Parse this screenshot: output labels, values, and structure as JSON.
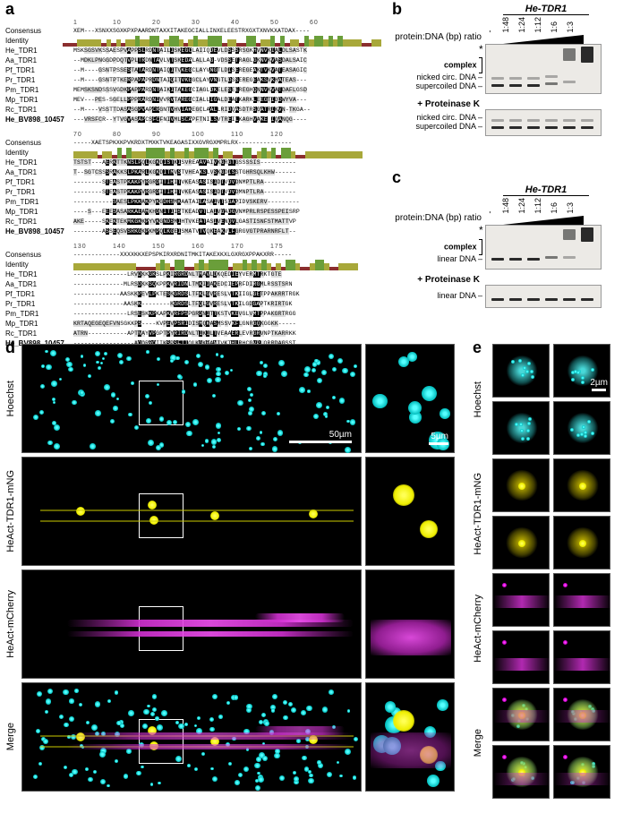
{
  "panel_labels": {
    "a": "a",
    "b": "b",
    "c": "c",
    "d": "d",
    "e": "e"
  },
  "alignment": {
    "consensus_label": "Consensus",
    "identity_label": "Identity",
    "species": [
      "He_TDR1",
      "Aa_TDR1",
      "Pf_TDR1",
      "Pr_TDR1",
      "Pm_TDR1",
      "Mp_TDR1",
      "Rc_TDR1",
      "He_BV898_10457"
    ],
    "blocks": [
      {
        "ruler": [
          "1",
          "10",
          "20",
          "30",
          "40",
          "50",
          "60"
        ],
        "consensus": "XEM---XSNXXSGXKPXPAARDNTAXXITAKEGCIALLINXELEESTRXGXTXNVKXATDAX----",
        "identity": "RRROOOOOROROROOGOOGGROGGOROGOOGGGROORRGGROOGRGROORGOGGOGOGOOOORROO",
        "seqs": [
          "MSKSGSVKSSAESPVAPPSLRDNTAILISKEGCLAIIQDEVLDSSSRSGKHVNVKIALDLSASTK",
          "--MDKLPNGGDPDQTVPLTRDNTAVLVTSKEDALALLAG-VDSSETRAGLGKNVKVASDALSAIC",
          "--M----GSNTPSSESTATARDNTAIQITVKEGCLAYVNGTLDISEREGEAKTVKVATEASAGIC",
          "--M----GSNTPTKERPAPAPRDNTAIQITVKEGCLAYVNGTLDSSEREGEAKSVKHATEAS---",
          "MEMSKSNDSSSVGDKPAPPARDNTAIKITAKEGCIAGLDKELESEEREGHQNNVKVATDAFLGSD",
          "MEV---PES-SGELLPPPRARDNIVVRVTAREGCIALLIGALDEATKARKLEEGTIDDWYVA---",
          "--M----VSSTTDASASGPVAPCRGNTVHVIAKEGCLAALLRIDQASDTRSGATRIKVN-TKGA--",
          "---VRSFCR--YTVGVASAPCSFCFNIVMLSCAPFTNILSVTREILKAGHVAKE IQANQG----"
        ]
      },
      {
        "ruler": [
          "70",
          "80",
          "90",
          "100",
          "110",
          "120"
        ],
        "consensus": "-----XAETSPKXKPVKRDXTMXKTVKEAGASIXXGVRGXMPRLRX---------------",
        "identity": "OOOOOROORGRGOOOGGGGOGOOGOGGGOGROORRGGROGOGRGGORROOOOOOOOOOOO",
        "seqs": [
          "TSTST---AERKTTKNSLPQLKGKDISTKISVREAAVAIVKGRGTGSSSSIS----------",
          "T--SGTCSSSRAKKSLPKARLKGKDITMVSTVHEAKSLVSKGDISSTGHRSQLKHW------",
          "--------STEASTPKAKPYRGRDITIHITVKEASASISIDTVDVDNMPTLRA---------",
          "--------STEASTPKAKPVRGRDITIHITVKEASASISIDTVDVDMNPTLRA---------",
          "-----------SAESLPKKAKPYKGDHSMKAATAIEASAIVTSGAPIDVSKERV---------",
          "----S---EEESASARKAEAMKHDNITIISTKEADVTLAIVGADGVNMPRLRSPESSPEISRP",
          "AKE-----SKEKTEKMKGKKPYVKGNDSMIHTVKEATASIVENQVLGASTISNFSTMATTVP",
          "--------ASSEQSVSRKGKPKMPQLKGEISMATVTVQKEAKVLFGRGVGTPRARNRFLT--"
        ]
      },
      {
        "ruler": [
          "130",
          "140",
          "150",
          "160",
          "170",
          "175"
        ],
        "consensus": "-------------XXXXKKXEPSPKIRXRDNITMKITAKEXKXLGXRGXPPAKXRR-----",
        "identity": "OOOOOOOOOOOOORRRROGORGGRROGOGGGGROOGOGOGORORGGORROGGORROOOO",
        "seqs": [
          "---------------LRVDKKGKSLPKIRGRDNLTMAVLDKQEDIEYVERMTRKTGTE",
          "--------------MLRSDKKSQKPPKVRIDNLTMKIIAKEDCIEPRFDIRGMLRSSTSRN",
          "-------------AASKKPEVLPKTESKGRDSLTFKLGVRESLVTKIIGLGETPPAKRRTRGK",
          "--------------AASKK--------KGRDSLTFQLGVRESLVTKILGDGAPTKRIRTGK",
          "---------------LRSESKKPKAPKVRFPSPGRDNITTKSTVKEVGLVMTPPAKGRTRGG",
          "KRTAQEGEQEFVNSGKKPS----KVPEVPSRIDISMQKASMSSVKFLGNRGQKGGKK-----",
          "ATRN-----------APTNAYVPGPTPYRIRDNLTIKILTVEAAERLEVRGRVNPTKARRKK",
          "-----------------AQQRRQIIKSPSFTIQLKGKRANIVKTHLRHCGVPLQRRDAGSST"
        ]
      }
    ]
  },
  "gel_b": {
    "header_title": "He-TDR1",
    "axis_label": "protein:DNA (bp) ratio",
    "ratios": [
      "-",
      "1:48",
      "1:24",
      "1:12",
      "1:6",
      "1:3"
    ],
    "labels_top": {
      "asterisk": "*",
      "complex": "complex",
      "nicked": "nicked circ. DNA",
      "super": "supercoiled DNA"
    },
    "proteinase": "+ Proteinase K",
    "labels_bottom": {
      "nicked": "nicked circ. DNA",
      "super": "supercoiled DNA"
    },
    "gel_bg": "#eceae6"
  },
  "gel_c": {
    "header_title": "He-TDR1",
    "axis_label": "protein:DNA (bp) ratio",
    "ratios": [
      "-",
      "1:48",
      "1:24",
      "1:12",
      "1:6",
      "1:3"
    ],
    "labels_top": {
      "asterisk": "*",
      "complex": "complex",
      "linear": "linear DNA"
    },
    "proteinase": "+ Proteinase K",
    "labels_bottom": {
      "linear": "linear DNA"
    },
    "gel_bg": "#eceae6"
  },
  "microscopy": {
    "channels": [
      "Hoechst",
      "HeAct-TDR1-mNG",
      "HeAct-mCherry",
      "Merge"
    ],
    "colors": {
      "Hoechst": "#40e0e0",
      "HeAct-TDR1-mNG": "#f5e300",
      "HeAct-mCherry": "#e040e0"
    },
    "scalebar_main": "50µm",
    "scalebar_inset": "5µm",
    "scalebar_e": "2µm"
  }
}
